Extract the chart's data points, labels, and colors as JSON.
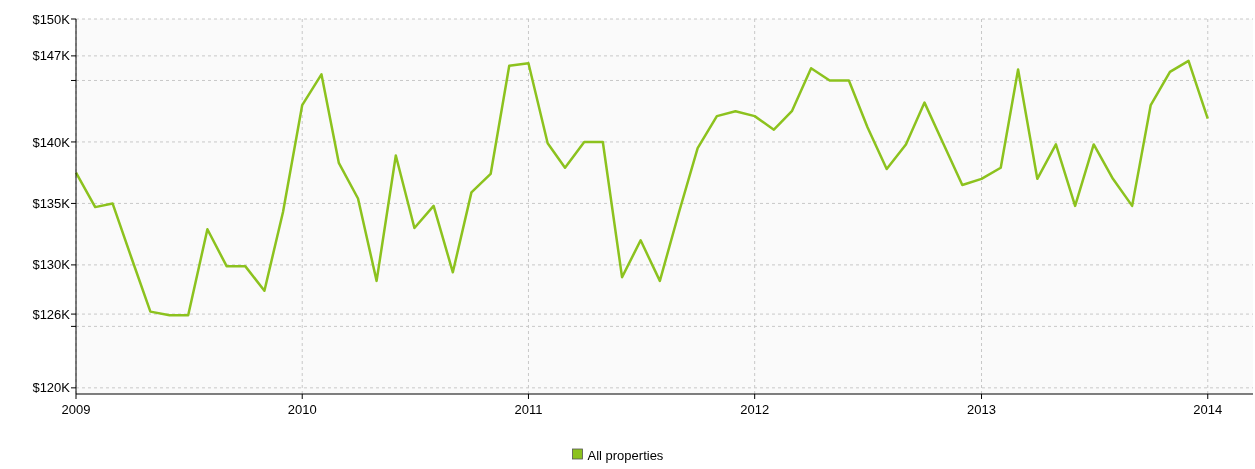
{
  "chart_data": {
    "type": "line",
    "x": [
      "2009-01",
      "2009-02",
      "2009-03",
      "2009-04",
      "2009-05",
      "2009-06",
      "2009-07",
      "2009-08",
      "2009-09",
      "2009-10",
      "2009-11",
      "2009-12",
      "2010-01",
      "2010-02",
      "2010-03",
      "2010-04",
      "2010-05",
      "2010-06",
      "2010-07",
      "2010-08",
      "2010-09",
      "2010-10",
      "2010-11",
      "2010-12",
      "2011-01",
      "2011-02",
      "2011-03",
      "2011-04",
      "2011-05",
      "2011-06",
      "2011-07",
      "2011-08",
      "2011-09",
      "2011-10",
      "2011-11",
      "2011-12",
      "2012-01",
      "2012-02",
      "2012-03",
      "2012-04",
      "2012-05",
      "2012-06",
      "2012-07",
      "2012-08",
      "2012-09",
      "2012-10",
      "2012-11",
      "2012-12",
      "2013-01",
      "2013-02",
      "2013-03",
      "2013-04",
      "2013-05",
      "2013-06",
      "2013-07",
      "2013-08",
      "2013-09",
      "2013-10",
      "2013-11",
      "2013-12",
      "2014-01"
    ],
    "series": [
      {
        "name": "All properties",
        "color": "#8cc21e",
        "values": [
          137.5,
          134.7,
          135,
          130.5,
          126.2,
          125.9,
          125.9,
          132.9,
          129.9,
          129.9,
          127.9,
          134.3,
          143,
          145.5,
          138.3,
          135.4,
          128.7,
          138.9,
          133,
          134.8,
          129.4,
          135.9,
          137.4,
          146.2,
          146.4,
          139.9,
          137.9,
          140,
          140,
          129,
          132,
          128.7,
          134.3,
          139.5,
          142.1,
          142.5,
          142.1,
          141,
          142.5,
          146,
          145,
          145,
          141.2,
          137.8,
          139.8,
          143.2,
          139.8,
          136.5,
          137,
          137.9,
          145.9,
          137,
          139.8,
          134.8,
          139.8,
          137,
          134.8,
          143,
          145.7,
          146.6,
          141.9
        ]
      }
    ],
    "xlim": [
      "2009-01",
      "2014-03-15"
    ],
    "xticks": [
      {
        "value": "2009-01",
        "label": "2009"
      },
      {
        "value": "2010-01",
        "label": "2010"
      },
      {
        "value": "2011-01",
        "label": "2011"
      },
      {
        "value": "2012-01",
        "label": "2012"
      },
      {
        "value": "2013-01",
        "label": "2013"
      },
      {
        "value": "2014-01",
        "label": "2014"
      }
    ],
    "ylim": [
      119.5,
      150
    ],
    "yticks": [
      {
        "value": 120,
        "label": "$120K"
      },
      {
        "value": 125,
        "label": null
      },
      {
        "value": 126,
        "label": "$126K"
      },
      {
        "value": 130,
        "label": "$130K"
      },
      {
        "value": 135,
        "label": "$135K"
      },
      {
        "value": 140,
        "label": "$140K"
      },
      {
        "value": 145,
        "label": null
      },
      {
        "value": 147,
        "label": "$147K"
      },
      {
        "value": 150,
        "label": "$150K"
      }
    ],
    "grid": true,
    "legend": "bottom",
    "marker": "none",
    "line_style": "solid"
  }
}
